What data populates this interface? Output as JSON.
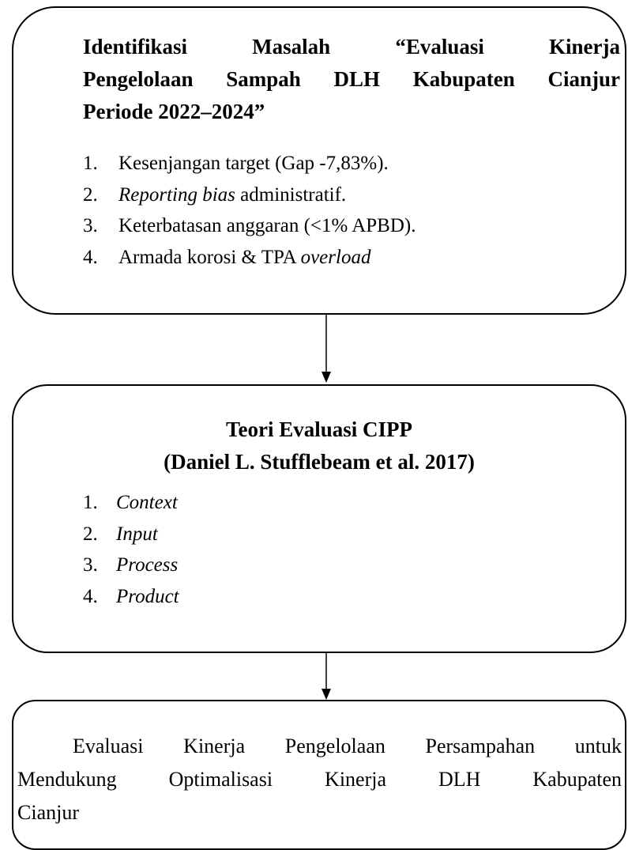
{
  "boxes": [
    {
      "title": [
        "Identifikasi Masalah “Evaluasi Kinerja",
        "Pengelolaan Sampah DLH Kabupaten Cianjur",
        "Periode 2022–2024”"
      ],
      "items": [
        {
          "number": "1.",
          "parts": [
            {
              "text": "Kesenjangan target (Gap -7,83%).",
              "italic": false
            }
          ]
        },
        {
          "number": "2.",
          "parts": [
            {
              "text": "Reporting bias",
              "italic": true
            },
            {
              "text": " administratif.",
              "italic": false
            }
          ]
        },
        {
          "number": "3.",
          "parts": [
            {
              "text": "Keterbatasan anggaran (<1% APBD).",
              "italic": false
            }
          ]
        },
        {
          "number": "4.",
          "parts": [
            {
              "text": "Armada korosi & TPA ",
              "italic": false
            },
            {
              "text": "overload",
              "italic": true
            }
          ]
        }
      ]
    },
    {
      "title": [
        "Teori Evaluasi CIPP",
        "(Daniel L. Stufflebeam et al. 2017)"
      ],
      "items": [
        {
          "number": "1.",
          "parts": [
            {
              "text": "Context",
              "italic": true
            }
          ]
        },
        {
          "number": "2.",
          "parts": [
            {
              "text": "Input",
              "italic": true
            }
          ]
        },
        {
          "number": "3.",
          "parts": [
            {
              "text": "Process",
              "italic": true
            }
          ]
        },
        {
          "number": "4.",
          "parts": [
            {
              "text": "Product",
              "italic": true
            }
          ]
        }
      ]
    },
    {
      "body": [
        "Evaluasi Kinerja Pengelolaan Persampahan untuk",
        "Mendukung Optimalisasi Kinerja DLH Kabupaten",
        "Cianjur"
      ]
    }
  ]
}
